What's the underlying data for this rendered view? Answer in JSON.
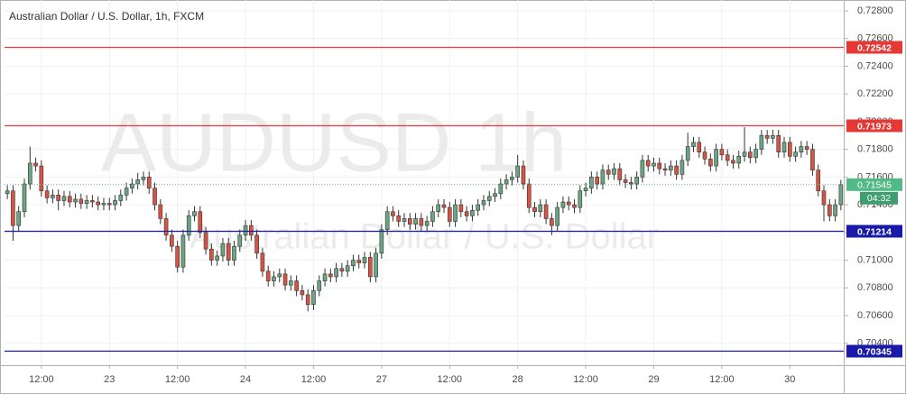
{
  "chart_data": {
    "type": "candlestick",
    "title": "Australian Dollar / U.S. Dollar, 1h, FXCM",
    "watermark": "AUDUSD   1h",
    "watermark_subtitle": "Australian Dollar  /  U.S. Dollar",
    "categories": [
      null,
      null,
      null,
      null,
      null,
      null,
      "12:00",
      null,
      null,
      null,
      null,
      null,
      null,
      null,
      null,
      null,
      null,
      null,
      "23",
      null,
      null,
      null,
      null,
      null,
      null,
      null,
      null,
      null,
      null,
      null,
      "12:00",
      null,
      null,
      null,
      null,
      null,
      null,
      null,
      null,
      null,
      null,
      null,
      "24",
      null,
      null,
      null,
      null,
      null,
      null,
      null,
      null,
      null,
      null,
      null,
      "12:00",
      null,
      null,
      null,
      null,
      null,
      null,
      null,
      null,
      null,
      null,
      null,
      "27",
      null,
      null,
      null,
      null,
      null,
      null,
      null,
      null,
      null,
      null,
      null,
      "12:00",
      null,
      null,
      null,
      null,
      null,
      null,
      null,
      null,
      null,
      null,
      null,
      "28",
      null,
      null,
      null,
      null,
      null,
      null,
      null,
      null,
      null,
      null,
      null,
      "12:00",
      null,
      null,
      null,
      null,
      null,
      null,
      null,
      null,
      null,
      null,
      null,
      "29",
      null,
      null,
      null,
      null,
      null,
      null,
      null,
      null,
      null,
      null,
      null,
      "12:00",
      null,
      null,
      null,
      null,
      null,
      null,
      null,
      null,
      null,
      null,
      null,
      "30",
      null,
      null,
      null,
      null,
      null,
      null,
      null,
      null,
      null
    ],
    "open": [
      0.7148,
      0.715,
      0.7125,
      0.7135,
      0.7155,
      0.717,
      0.7168,
      0.715,
      0.7145,
      0.7147,
      0.7143,
      0.7146,
      0.7142,
      0.7144,
      0.7141,
      0.7143,
      0.7142,
      0.714,
      0.7141,
      0.714,
      0.7143,
      0.7147,
      0.7152,
      0.7155,
      0.7158,
      0.716,
      0.7152,
      0.714,
      0.713,
      0.7118,
      0.711,
      0.7095,
      0.7118,
      0.7132,
      0.7135,
      0.712,
      0.7108,
      0.71,
      0.7103,
      0.7112,
      0.71,
      0.711,
      0.7118,
      0.7125,
      0.7118,
      0.7105,
      0.7092,
      0.7085,
      0.7088,
      0.709,
      0.7082,
      0.7085,
      0.7078,
      0.7075,
      0.7068,
      0.7078,
      0.7085,
      0.709,
      0.7088,
      0.7094,
      0.7092,
      0.7096,
      0.71,
      0.7098,
      0.7102,
      0.7088,
      0.7105,
      0.7122,
      0.7135,
      0.7132,
      0.7128,
      0.713,
      0.7126,
      0.713,
      0.7125,
      0.7128,
      0.7135,
      0.714,
      0.7138,
      0.7128,
      0.714,
      0.7135,
      0.7132,
      0.7136,
      0.714,
      0.7143,
      0.7146,
      0.7148,
      0.7155,
      0.7158,
      0.716,
      0.7168,
      0.7155,
      0.7138,
      0.7135,
      0.714,
      0.713,
      0.7125,
      0.7138,
      0.7142,
      0.714,
      0.7138,
      0.715,
      0.7152,
      0.716,
      0.7155,
      0.7165,
      0.7162,
      0.7166,
      0.7158,
      0.7156,
      0.7155,
      0.716,
      0.7172,
      0.7168,
      0.717,
      0.7166,
      0.7165,
      0.7168,
      0.7162,
      0.7172,
      0.7182,
      0.7185,
      0.7178,
      0.7173,
      0.7168,
      0.718,
      0.7176,
      0.7172,
      0.717,
      0.7175,
      0.7178,
      0.7174,
      0.718,
      0.719,
      0.7188,
      0.719,
      0.7178,
      0.7185,
      0.7175,
      0.7178,
      0.7182,
      0.718,
      0.7165,
      0.715,
      0.714,
      0.7132,
      0.714
    ],
    "high": [
      0.7154,
      0.7154,
      0.7139,
      0.7159,
      0.7182,
      0.7174,
      0.7172,
      0.7154,
      0.7151,
      0.7151,
      0.715,
      0.715,
      0.7148,
      0.7148,
      0.7147,
      0.7147,
      0.7146,
      0.7145,
      0.7145,
      0.7147,
      0.7151,
      0.7156,
      0.7159,
      0.7163,
      0.7164,
      0.7164,
      0.7156,
      0.7144,
      0.7134,
      0.7122,
      0.7114,
      0.7122,
      0.7136,
      0.7139,
      0.7139,
      0.7124,
      0.7112,
      0.7107,
      0.7116,
      0.7116,
      0.7114,
      0.7122,
      0.7129,
      0.7129,
      0.7122,
      0.7109,
      0.7096,
      0.7092,
      0.7094,
      0.7094,
      0.7089,
      0.7089,
      0.7082,
      0.7079,
      0.7082,
      0.7089,
      0.7094,
      0.7094,
      0.7098,
      0.7098,
      0.71,
      0.7104,
      0.7104,
      0.7106,
      0.7106,
      0.7109,
      0.7126,
      0.7139,
      0.7139,
      0.7136,
      0.7134,
      0.7134,
      0.7134,
      0.7134,
      0.7132,
      0.7139,
      0.7144,
      0.7144,
      0.7142,
      0.7144,
      0.7144,
      0.7139,
      0.714,
      0.7144,
      0.7147,
      0.715,
      0.7152,
      0.7159,
      0.7162,
      0.7164,
      0.7176,
      0.7172,
      0.7159,
      0.7142,
      0.7144,
      0.7144,
      0.7134,
      0.7142,
      0.7146,
      0.7146,
      0.7144,
      0.7154,
      0.7156,
      0.7164,
      0.7164,
      0.7169,
      0.7169,
      0.717,
      0.717,
      0.7162,
      0.716,
      0.7164,
      0.7176,
      0.7176,
      0.7174,
      0.7174,
      0.717,
      0.7172,
      0.7172,
      0.7176,
      0.7192,
      0.7189,
      0.7189,
      0.7182,
      0.7177,
      0.7184,
      0.7184,
      0.718,
      0.7176,
      0.7179,
      0.7196,
      0.7182,
      0.7184,
      0.7194,
      0.7194,
      0.7194,
      0.7194,
      0.7189,
      0.7189,
      0.7182,
      0.7186,
      0.7186,
      0.7184,
      0.7169,
      0.7154,
      0.7144,
      0.7144,
      0.7158
    ],
    "low": [
      0.7144,
      0.7114,
      0.7121,
      0.7131,
      0.7151,
      0.7164,
      0.7146,
      0.7141,
      0.7141,
      0.7136,
      0.7139,
      0.7138,
      0.7138,
      0.7137,
      0.7137,
      0.7138,
      0.7136,
      0.7136,
      0.7136,
      0.7136,
      0.7139,
      0.7143,
      0.7148,
      0.7151,
      0.7154,
      0.7148,
      0.7136,
      0.7126,
      0.7114,
      0.7106,
      0.7091,
      0.7091,
      0.7114,
      0.7128,
      0.7116,
      0.7104,
      0.7096,
      0.7096,
      0.7099,
      0.7096,
      0.7096,
      0.7106,
      0.7114,
      0.7114,
      0.7101,
      0.7088,
      0.7081,
      0.7081,
      0.7084,
      0.7078,
      0.7078,
      0.7074,
      0.7071,
      0.7063,
      0.7064,
      0.7074,
      0.7081,
      0.7084,
      0.7084,
      0.7088,
      0.7088,
      0.7092,
      0.7094,
      0.7094,
      0.7084,
      0.7084,
      0.7101,
      0.7118,
      0.7128,
      0.7124,
      0.7124,
      0.7122,
      0.7122,
      0.7121,
      0.7121,
      0.7124,
      0.7131,
      0.7134,
      0.7124,
      0.7124,
      0.7131,
      0.7128,
      0.7128,
      0.7132,
      0.7136,
      0.7139,
      0.7142,
      0.7144,
      0.7151,
      0.7154,
      0.7156,
      0.7151,
      0.7134,
      0.7131,
      0.7131,
      0.7126,
      0.7118,
      0.7121,
      0.7134,
      0.7136,
      0.7134,
      0.7134,
      0.7146,
      0.7148,
      0.7151,
      0.7151,
      0.7158,
      0.7158,
      0.7154,
      0.7152,
      0.7151,
      0.7151,
      0.7156,
      0.7164,
      0.7164,
      0.7162,
      0.7161,
      0.7161,
      0.7158,
      0.7158,
      0.7168,
      0.7178,
      0.7174,
      0.7169,
      0.7164,
      0.7164,
      0.7172,
      0.7168,
      0.7166,
      0.7166,
      0.7171,
      0.717,
      0.717,
      0.7176,
      0.7184,
      0.7184,
      0.7174,
      0.7174,
      0.7171,
      0.7171,
      0.7174,
      0.7176,
      0.7161,
      0.7146,
      0.7128,
      0.7128,
      0.7128,
      0.7136
    ],
    "close": [
      0.715,
      0.7125,
      0.7135,
      0.7155,
      0.717,
      0.7168,
      0.715,
      0.7145,
      0.7147,
      0.7143,
      0.7146,
      0.7142,
      0.7144,
      0.7141,
      0.7143,
      0.7142,
      0.714,
      0.7141,
      0.714,
      0.7143,
      0.7147,
      0.7152,
      0.7155,
      0.7158,
      0.716,
      0.7152,
      0.714,
      0.713,
      0.7118,
      0.711,
      0.7095,
      0.7118,
      0.7132,
      0.7135,
      0.712,
      0.7108,
      0.71,
      0.7103,
      0.7112,
      0.71,
      0.711,
      0.7118,
      0.7125,
      0.7118,
      0.7105,
      0.7092,
      0.7085,
      0.7088,
      0.709,
      0.7082,
      0.7085,
      0.7078,
      0.7075,
      0.7068,
      0.7078,
      0.7085,
      0.709,
      0.7088,
      0.7094,
      0.7092,
      0.7096,
      0.71,
      0.7098,
      0.7102,
      0.7088,
      0.7105,
      0.7122,
      0.7135,
      0.7132,
      0.7128,
      0.713,
      0.7126,
      0.713,
      0.7125,
      0.7128,
      0.7135,
      0.714,
      0.7138,
      0.7128,
      0.714,
      0.7135,
      0.7132,
      0.7136,
      0.714,
      0.7143,
      0.7146,
      0.7148,
      0.7155,
      0.7158,
      0.716,
      0.7168,
      0.7155,
      0.7138,
      0.7135,
      0.714,
      0.713,
      0.7125,
      0.7138,
      0.7142,
      0.714,
      0.7138,
      0.715,
      0.7152,
      0.716,
      0.7155,
      0.7165,
      0.7162,
      0.7166,
      0.7158,
      0.7156,
      0.7155,
      0.716,
      0.7172,
      0.7168,
      0.717,
      0.7166,
      0.7165,
      0.7168,
      0.7162,
      0.7172,
      0.7182,
      0.7185,
      0.7178,
      0.7173,
      0.7168,
      0.718,
      0.7176,
      0.7172,
      0.717,
      0.7175,
      0.7178,
      0.7174,
      0.718,
      0.719,
      0.7188,
      0.719,
      0.7178,
      0.7185,
      0.7175,
      0.7178,
      0.7182,
      0.718,
      0.7165,
      0.715,
      0.714,
      0.7132,
      0.714,
      0.71545
    ],
    "up_color": "#6ba583",
    "down_color": "#d75442",
    "ylim": [
      0.70242,
      0.72878
    ],
    "yticks": [
      {
        "value": 0.728,
        "label": "0.72800"
      },
      {
        "value": 0.726,
        "label": "0.72600"
      },
      {
        "value": 0.724,
        "label": "0.72400"
      },
      {
        "value": 0.722,
        "label": "0.72200"
      },
      {
        "value": 0.72,
        "label": "0.72000"
      },
      {
        "value": 0.718,
        "label": "0.71800"
      },
      {
        "value": 0.716,
        "label": "0.71600"
      },
      {
        "value": 0.714,
        "label": "0.71400"
      },
      {
        "value": 0.712,
        "label": "0.71200"
      },
      {
        "value": 0.71,
        "label": "0.71000"
      },
      {
        "value": 0.708,
        "label": "0.70800"
      },
      {
        "value": 0.706,
        "label": "0.70600"
      },
      {
        "value": 0.704,
        "label": "0.70400"
      }
    ],
    "levels": [
      {
        "value": 0.72542,
        "color": "#e53935"
      },
      {
        "value": 0.71973,
        "color": "#e53935"
      },
      {
        "value": 0.71214,
        "color": "#1a1aa8"
      },
      {
        "value": 0.70345,
        "color": "#1a1aa8"
      }
    ],
    "last_price": 0.71545,
    "last_color": "#53b987",
    "countdown": "04:32",
    "grid": true
  }
}
